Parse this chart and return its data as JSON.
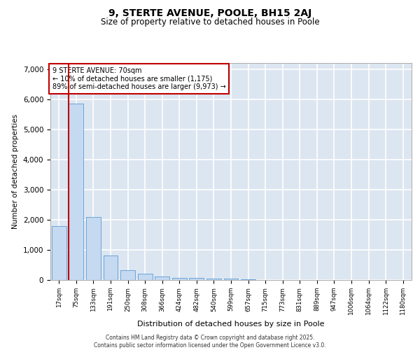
{
  "title_line1": "9, STERTE AVENUE, POOLE, BH15 2AJ",
  "title_line2": "Size of property relative to detached houses in Poole",
  "xlabel": "Distribution of detached houses by size in Poole",
  "ylabel": "Number of detached properties",
  "categories": [
    "17sqm",
    "75sqm",
    "133sqm",
    "191sqm",
    "250sqm",
    "308sqm",
    "366sqm",
    "424sqm",
    "482sqm",
    "540sqm",
    "599sqm",
    "657sqm",
    "715sqm",
    "773sqm",
    "831sqm",
    "889sqm",
    "947sqm",
    "1006sqm",
    "1064sqm",
    "1122sqm",
    "1180sqm"
  ],
  "values": [
    1800,
    5850,
    2100,
    820,
    330,
    200,
    115,
    80,
    60,
    55,
    50,
    25,
    0,
    0,
    0,
    0,
    0,
    0,
    0,
    0,
    0
  ],
  "bar_color": "#c5d9f1",
  "bar_edge_color": "#5b9bd5",
  "vline_color": "#c00000",
  "vline_position": 0.575,
  "annotation_text_line1": "9 STERTE AVENUE: 70sqm",
  "annotation_text_line2": "← 10% of detached houses are smaller (1,175)",
  "annotation_text_line3": "89% of semi-detached houses are larger (9,973) →",
  "ylim": [
    0,
    7200
  ],
  "yticks": [
    0,
    1000,
    2000,
    3000,
    4000,
    5000,
    6000,
    7000
  ],
  "background_color": "#dce6f1",
  "figure_background": "#ffffff",
  "grid_color": "#ffffff",
  "footer_line1": "Contains HM Land Registry data © Crown copyright and database right 2025.",
  "footer_line2": "Contains public sector information licensed under the Open Government Licence v3.0."
}
